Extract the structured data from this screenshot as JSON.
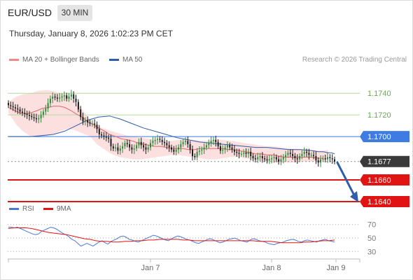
{
  "header": {
    "pair": "EUR/USD",
    "timeframe": "30 MIN",
    "timestamp": "Thursday, January 8, 2026 1:02:23 PM CET"
  },
  "legend": {
    "ma20_label": "MA 20 + Bollinger Bands",
    "ma50_label": "MA 50",
    "credit": "Research © 2026 Trading Central"
  },
  "rsi_legend": {
    "rsi_label": "RSI",
    "ma_label": "9MA"
  },
  "colors": {
    "candle_up": "#2d8a3a",
    "candle_down": "#1a1a1a",
    "ma20": "#e06666",
    "bollinger_fill": "#fbd4d4",
    "ma50": "#2f5da8",
    "line_green": "#b5d99c",
    "line_blue": "#3e7be3",
    "line_red": "#e11414",
    "rsi": "#4a78d6",
    "rsi_ma": "#e11414",
    "arrow": "#2f5da8"
  },
  "chart_data": [
    {
      "type": "candlestick",
      "title": "EUR/USD 30 MIN",
      "x_tick_labels": [
        "Jan 7",
        "Jan 8",
        "Jan 9"
      ],
      "ylim": [
        1.1629,
        1.1766
      ],
      "series": [
        {
          "name": "EUR/USD",
          "close": [
            1.1729,
            1.1728,
            1.1727,
            1.1726,
            1.1725,
            1.1723,
            1.1722,
            1.1721,
            1.172,
            1.1719,
            1.1718,
            1.1717,
            1.1716,
            1.1717,
            1.172,
            1.1723,
            1.1726,
            1.1731,
            1.1735,
            1.1737,
            1.1736,
            1.1735,
            1.1736,
            1.1737,
            1.1738,
            1.1735,
            1.1737,
            1.1739,
            1.1735,
            1.1732,
            1.1725,
            1.1718,
            1.1714,
            1.1715,
            1.1713,
            1.1712,
            1.1712,
            1.1711,
            1.1707,
            1.1702,
            1.1701,
            1.17,
            1.1699,
            1.1698,
            1.1691,
            1.1689,
            1.169,
            1.1687,
            1.1689,
            1.1691,
            1.1694,
            1.1693,
            1.169,
            1.1688,
            1.1689,
            1.1692,
            1.1695,
            1.1692,
            1.169,
            1.1688,
            1.169,
            1.1694,
            1.1696,
            1.1697,
            1.1698,
            1.1697,
            1.1695,
            1.1694,
            1.1692,
            1.169,
            1.1688,
            1.1686,
            1.1688,
            1.169,
            1.1693,
            1.1695,
            1.1696,
            1.1693,
            1.1688,
            1.1682,
            1.1681,
            1.1686,
            1.1687,
            1.1688,
            1.169,
            1.1692,
            1.1694,
            1.1696,
            1.1697,
            1.1695,
            1.1691,
            1.1687,
            1.1688,
            1.169,
            1.1692,
            1.169,
            1.1688,
            1.1686,
            1.1685,
            1.1684,
            1.1684,
            1.1685,
            1.1684,
            1.1686,
            1.1682,
            1.168,
            1.1679,
            1.1681,
            1.1682,
            1.168,
            1.1679,
            1.1678,
            1.1679,
            1.168,
            1.1681,
            1.1679,
            1.1677,
            1.1679,
            1.1681,
            1.1683,
            1.1685,
            1.1684,
            1.1682,
            1.168,
            1.1679,
            1.1682,
            1.1684,
            1.1686,
            1.1685,
            1.1683,
            1.1683,
            1.1682,
            1.1678,
            1.1676,
            1.1679,
            1.168,
            1.1679,
            1.1681,
            1.168,
            1.1679,
            1.1677
          ],
          "range": [
            1.16765,
            1.17418
          ],
          "ma20": [
            1.1727,
            1.1724,
            1.1722,
            1.1721,
            1.1722,
            1.1724,
            1.1726,
            1.1727,
            1.1728,
            1.1728,
            1.1727,
            1.1724,
            1.1721,
            1.1718,
            1.1714,
            1.1711,
            1.1708,
            1.1705,
            1.1702,
            1.17,
            1.1698,
            1.1697,
            1.1696,
            1.1694,
            1.1693,
            1.1692,
            1.1691,
            1.1691,
            1.169,
            1.1689,
            1.1689,
            1.1689,
            1.1688,
            1.1688,
            1.1689,
            1.1689,
            1.1689,
            1.1689,
            1.1689,
            1.1688,
            1.1688,
            1.1687,
            1.1686,
            1.1685,
            1.1684,
            1.1684,
            1.1683,
            1.1683,
            1.1682,
            1.1681,
            1.1681,
            1.1681,
            1.1681,
            1.1681,
            1.1681,
            1.168,
            1.168
          ],
          "ma20_x": [
            0,
            4,
            7,
            11,
            14,
            18,
            21,
            25,
            28,
            32,
            35,
            39,
            42,
            46,
            49,
            53,
            56,
            60,
            63,
            67,
            70,
            74,
            77,
            81,
            84,
            88,
            91,
            95,
            98,
            102,
            105,
            109,
            112,
            116,
            119,
            123,
            126,
            130,
            133,
            137,
            140,
            144,
            147,
            151,
            154,
            158,
            161,
            165,
            168,
            172,
            175,
            179,
            182,
            186,
            189,
            193,
            196
          ],
          "bb_upper": [
            1.1732,
            1.1737,
            1.1739,
            1.174,
            1.1742,
            1.1743,
            1.1742,
            1.174,
            1.1738,
            1.1733,
            1.1725,
            1.1715,
            1.171,
            1.1707,
            1.1705,
            1.1703,
            1.1701,
            1.17,
            1.1699,
            1.1698,
            1.1697,
            1.1696,
            1.1696,
            1.1697,
            1.1698,
            1.1697,
            1.1696,
            1.1696,
            1.1697,
            1.1697,
            1.1696,
            1.1695,
            1.1694,
            1.1693,
            1.1692,
            1.1691,
            1.1691,
            1.169,
            1.1689,
            1.1689,
            1.1688,
            1.1688,
            1.1687,
            1.1687,
            1.1688
          ],
          "bb_lower": [
            1.1722,
            1.1711,
            1.1705,
            1.17,
            1.1699,
            1.17,
            1.1702,
            1.1705,
            1.1707,
            1.1706,
            1.1703,
            1.17,
            1.1693,
            1.1688,
            1.1684,
            1.1681,
            1.168,
            1.1679,
            1.1679,
            1.168,
            1.1681,
            1.1682,
            1.1683,
            1.1683,
            1.1682,
            1.1681,
            1.168,
            1.1679,
            1.1679,
            1.168,
            1.1681,
            1.1681,
            1.168,
            1.1679,
            1.1678,
            1.1677,
            1.1676,
            1.1676,
            1.1676,
            1.1676,
            1.1677,
            1.1677,
            1.1677,
            1.1678,
            1.1679
          ],
          "bb_x": [
            0,
            5,
            9,
            14,
            18,
            23,
            28,
            32,
            37,
            41,
            46,
            51,
            55,
            60,
            64,
            69,
            74,
            78,
            83,
            87,
            92,
            97,
            101,
            106,
            110,
            115,
            120,
            124,
            129,
            133,
            138,
            143,
            147,
            152,
            156,
            161,
            166,
            170,
            175,
            179,
            184,
            189,
            193,
            196,
            199
          ],
          "ma50": [
            1.17,
            1.17,
            1.17,
            1.1701,
            1.1702,
            1.1705,
            1.171,
            1.1715,
            1.1718,
            1.1719,
            1.1716,
            1.1712,
            1.1708,
            1.1705,
            1.1702,
            1.1699,
            1.1697,
            1.1695,
            1.1694,
            1.1693,
            1.1692,
            1.1691,
            1.169,
            1.169,
            1.1689,
            1.1688,
            1.1688,
            1.1687,
            1.1686,
            1.1686,
            1.1685,
            1.1685,
            1.1684
          ],
          "ma50_x": [
            0,
            7,
            14,
            21,
            28,
            35,
            42,
            49,
            56,
            63,
            70,
            77,
            84,
            91,
            98,
            105,
            112,
            119,
            126,
            133,
            140,
            147,
            154,
            161,
            168,
            175,
            182,
            189,
            193,
            196,
            199,
            201,
            203
          ]
        }
      ],
      "price_lines": [
        {
          "value": 1.174,
          "label": "1.1740",
          "kind": "green"
        },
        {
          "value": 1.172,
          "label": "1.1720",
          "kind": "green"
        },
        {
          "value": 1.17,
          "label": "1.1700",
          "kind": "blue"
        },
        {
          "value": 1.1677,
          "label": "1.1677",
          "kind": "last"
        },
        {
          "value": 1.166,
          "label": "1.1660",
          "kind": "red"
        },
        {
          "value": 1.164,
          "label": "1.1640",
          "kind": "red"
        }
      ],
      "forecast_arrow": {
        "from": 1.1676,
        "to": 1.164
      }
    },
    {
      "type": "line",
      "title": "RSI",
      "ylim": [
        22,
        78
      ],
      "y_ticks": [
        "70",
        "50",
        "30"
      ],
      "y_tick_values": [
        70,
        50,
        30
      ],
      "series": [
        {
          "name": "RSI",
          "values": [
            66,
            66,
            65,
            66,
            64,
            62,
            60,
            58,
            56,
            55,
            56,
            60,
            62,
            64,
            66,
            65,
            63,
            60,
            57,
            55,
            52,
            48,
            46,
            42,
            38,
            40,
            42,
            40,
            38,
            41,
            44,
            46,
            43,
            41,
            45,
            47,
            49,
            52,
            53,
            51,
            48,
            47,
            45,
            44,
            46,
            48,
            50,
            52,
            54,
            53,
            51,
            49,
            47,
            46,
            49,
            51,
            53,
            52,
            50,
            48,
            47,
            45,
            43,
            42,
            44,
            46,
            48,
            49,
            47,
            45,
            43,
            44,
            46,
            48,
            49,
            50,
            48,
            46,
            45,
            44,
            47,
            49,
            48,
            46,
            45,
            44,
            42,
            41,
            40,
            42,
            43,
            44,
            46,
            47,
            48,
            47,
            45,
            44,
            46,
            47,
            46,
            45,
            44,
            46,
            47,
            48,
            46,
            45,
            44
          ]
        },
        {
          "name": "9MA",
          "values": [
            64,
            65,
            65,
            65,
            64,
            62,
            60,
            58,
            57,
            56,
            55,
            53,
            51,
            49,
            48,
            46,
            45,
            45,
            44,
            44,
            45,
            45,
            46,
            46,
            47,
            47,
            48,
            48,
            48,
            48,
            47,
            47,
            46,
            46,
            46,
            46,
            46,
            46,
            46,
            46,
            46,
            46,
            46,
            45,
            45,
            45,
            44,
            43,
            43,
            43,
            43,
            44,
            44,
            45,
            46,
            46,
            47
          ]
        }
      ]
    }
  ]
}
